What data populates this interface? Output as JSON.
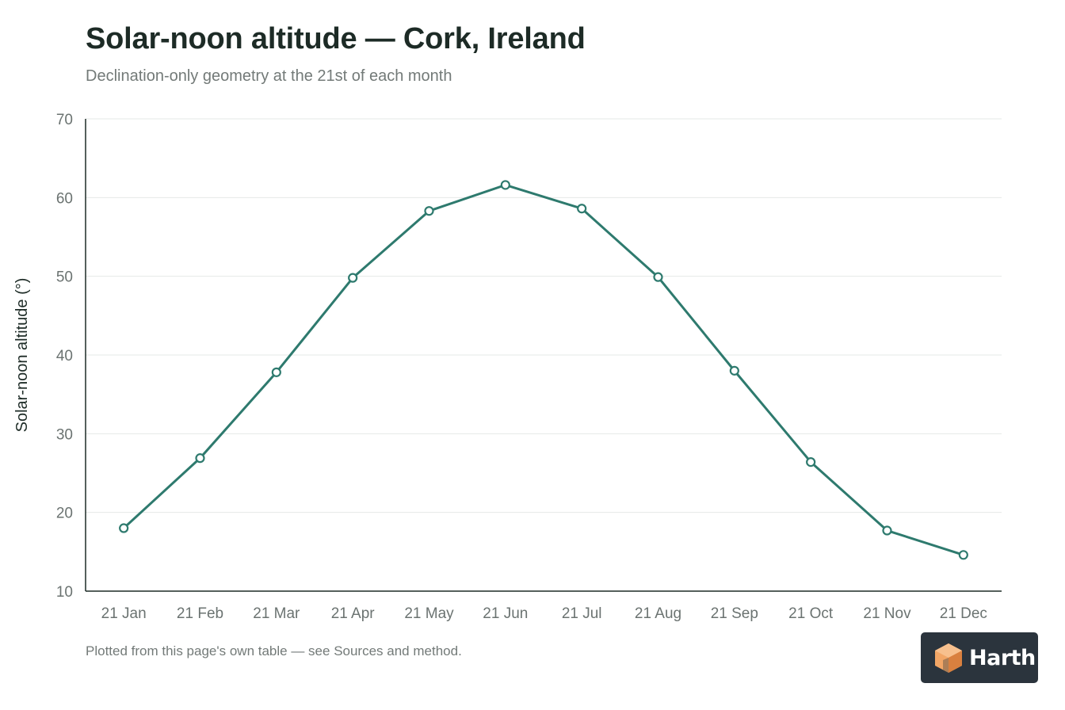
{
  "header": {
    "title": "Solar-noon altitude — Cork, Ireland",
    "subtitle": "Declination-only geometry at the 21st of each month"
  },
  "footer": {
    "note": "Plotted from this page's own table — see Sources and method."
  },
  "logo": {
    "text": "Harth",
    "icon": "cube-icon"
  },
  "colors": {
    "line": "#2e7a6e",
    "grid": "#e6e8e7",
    "axis": "#1d2b26",
    "tick_text": "#6b7371",
    "title": "#1d2b26",
    "logo_bg": "#2b343d",
    "logo_accent": "#f2a666"
  },
  "chart_data": {
    "type": "line",
    "title": "Solar-noon altitude — Cork, Ireland",
    "subtitle": "Declination-only geometry at the 21st of each month",
    "xlabel": "",
    "ylabel": "Solar-noon altitude (°)",
    "ylim": [
      10,
      70
    ],
    "yticks": [
      10,
      20,
      30,
      40,
      50,
      60,
      70
    ],
    "grid": "horizontal",
    "legend": "none",
    "categories": [
      "21 Jan",
      "21 Feb",
      "21 Mar",
      "21 Apr",
      "21 May",
      "21 Jun",
      "21 Jul",
      "21 Aug",
      "21 Sep",
      "21 Oct",
      "21 Nov",
      "21 Dec"
    ],
    "series": [
      {
        "values": [
          18.0,
          26.9,
          37.8,
          49.8,
          58.3,
          61.6,
          58.6,
          49.9,
          38.0,
          26.4,
          17.7,
          14.6
        ]
      }
    ]
  }
}
